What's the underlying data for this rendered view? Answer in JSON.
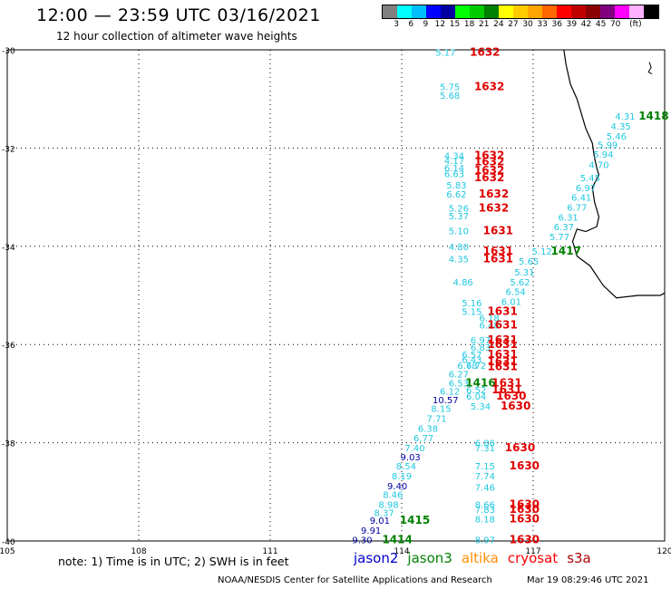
{
  "header": {
    "title": "12:00 — 23:59 UTC 03/16/2021",
    "subtitle": "12 hour collection of altimeter wave heights"
  },
  "colorbar": {
    "colors": [
      "#808080",
      "#00ffff",
      "#00bfff",
      "#0000ff",
      "#0000a0",
      "#00ff00",
      "#00cc00",
      "#008000",
      "#ffff00",
      "#ffcc00",
      "#ffa500",
      "#ff6600",
      "#ff0000",
      "#c00000",
      "#8b0000",
      "#800080",
      "#ff00ff",
      "#ffb0ff",
      "#000000"
    ],
    "ticks": [
      "3",
      "6",
      "9",
      "12",
      "15",
      "18",
      "21",
      "24",
      "27",
      "30",
      "33",
      "36",
      "39",
      "42",
      "45",
      "70",
      "(ft)"
    ]
  },
  "map": {
    "lat_ticks": [
      "-30",
      "-32",
      "-34",
      "-36",
      "-38",
      "-40"
    ],
    "lon_ticks": [
      "105",
      "108",
      "111",
      "114",
      "117",
      "120"
    ],
    "satellite_colors": {
      "jason2": "#0000cd",
      "jason3": "#008000",
      "altika": "#ff8c00",
      "cryosat": "#ff0000",
      "s3a": "#b00000"
    },
    "labels": [
      {
        "t": "5.17",
        "lon": 115.0,
        "lat": -30.05,
        "c": "c"
      },
      {
        "t": "1632",
        "lon": 115.9,
        "lat": -30.05,
        "c": "r"
      },
      {
        "t": "5.75",
        "lon": 115.1,
        "lat": -30.75,
        "c": "c"
      },
      {
        "t": "5.68",
        "lon": 115.1,
        "lat": -30.92,
        "c": "c"
      },
      {
        "t": "1632",
        "lon": 116.0,
        "lat": -30.75,
        "c": "r"
      },
      {
        "t": "4.31",
        "lon": 119.1,
        "lat": -31.35,
        "c": "c"
      },
      {
        "t": "1418",
        "lon": 119.75,
        "lat": -31.35,
        "c": "g"
      },
      {
        "t": "4.35",
        "lon": 119.0,
        "lat": -31.55,
        "c": "c"
      },
      {
        "t": "5.46",
        "lon": 118.9,
        "lat": -31.75,
        "c": "c"
      },
      {
        "t": "5.99",
        "lon": 118.7,
        "lat": -31.93,
        "c": "c"
      },
      {
        "t": "5.94",
        "lon": 118.6,
        "lat": -32.12,
        "c": "c"
      },
      {
        "t": "4.70",
        "lon": 118.5,
        "lat": -32.33,
        "c": "c"
      },
      {
        "t": "5.45",
        "lon": 118.3,
        "lat": -32.6,
        "c": "c"
      },
      {
        "t": "6.97",
        "lon": 118.2,
        "lat": -32.8,
        "c": "c"
      },
      {
        "t": "6.41",
        "lon": 118.1,
        "lat": -33.0,
        "c": "c"
      },
      {
        "t": "6.77",
        "lon": 118.0,
        "lat": -33.2,
        "c": "c"
      },
      {
        "t": "6.31",
        "lon": 117.8,
        "lat": -33.4,
        "c": "c"
      },
      {
        "t": "6.37",
        "lon": 117.7,
        "lat": -33.6,
        "c": "c"
      },
      {
        "t": "5.77",
        "lon": 117.6,
        "lat": -33.8,
        "c": "c"
      },
      {
        "t": "4.34",
        "lon": 115.2,
        "lat": -32.15,
        "c": "c"
      },
      {
        "t": "4.17",
        "lon": 115.2,
        "lat": -32.25,
        "c": "c"
      },
      {
        "t": "6.14",
        "lon": 115.2,
        "lat": -32.4,
        "c": "c"
      },
      {
        "t": "6.63",
        "lon": 115.2,
        "lat": -32.52,
        "c": "c"
      },
      {
        "t": "5.83",
        "lon": 115.25,
        "lat": -32.75,
        "c": "c"
      },
      {
        "t": "6.62",
        "lon": 115.25,
        "lat": -32.93,
        "c": "c"
      },
      {
        "t": "1632",
        "lon": 116.0,
        "lat": -32.15,
        "c": "r"
      },
      {
        "t": "1632",
        "lon": 116.0,
        "lat": -32.28,
        "c": "r"
      },
      {
        "t": "1632",
        "lon": 116.0,
        "lat": -32.45,
        "c": "r"
      },
      {
        "t": "1632",
        "lon": 116.0,
        "lat": -32.6,
        "c": "r"
      },
      {
        "t": "1632",
        "lon": 116.1,
        "lat": -32.93,
        "c": "r"
      },
      {
        "t": "5.26",
        "lon": 115.3,
        "lat": -33.22,
        "c": "c"
      },
      {
        "t": "5.37",
        "lon": 115.3,
        "lat": -33.38,
        "c": "c"
      },
      {
        "t": "1632",
        "lon": 116.1,
        "lat": -33.22,
        "c": "r"
      },
      {
        "t": "5.10",
        "lon": 115.3,
        "lat": -33.68,
        "c": "c"
      },
      {
        "t": "1631",
        "lon": 116.2,
        "lat": -33.68,
        "c": "r"
      },
      {
        "t": "4.80",
        "lon": 115.3,
        "lat": -34.0,
        "c": "c"
      },
      {
        "t": "4.35",
        "lon": 115.3,
        "lat": -34.25,
        "c": "c"
      },
      {
        "t": "1631",
        "lon": 116.2,
        "lat": -34.1,
        "c": "r"
      },
      {
        "t": "1631",
        "lon": 116.2,
        "lat": -34.25,
        "c": "r"
      },
      {
        "t": "5.12",
        "lon": 117.2,
        "lat": -34.1,
        "c": "c"
      },
      {
        "t": "1417",
        "lon": 117.75,
        "lat": -34.1,
        "c": "g"
      },
      {
        "t": "5.65",
        "lon": 116.9,
        "lat": -34.3,
        "c": "c"
      },
      {
        "t": "5.31",
        "lon": 116.8,
        "lat": -34.52,
        "c": "c"
      },
      {
        "t": "5.62",
        "lon": 116.7,
        "lat": -34.72,
        "c": "c"
      },
      {
        "t": "6.54",
        "lon": 116.6,
        "lat": -34.92,
        "c": "c"
      },
      {
        "t": "4.86",
        "lon": 115.4,
        "lat": -34.72,
        "c": "c"
      },
      {
        "t": "6.01",
        "lon": 116.5,
        "lat": -35.12,
        "c": "c"
      },
      {
        "t": "5.16",
        "lon": 115.6,
        "lat": -35.15,
        "c": "c"
      },
      {
        "t": "5.15",
        "lon": 115.6,
        "lat": -35.32,
        "c": "c"
      },
      {
        "t": "1631",
        "lon": 116.3,
        "lat": -35.32,
        "c": "r"
      },
      {
        "t": "6.18",
        "lon": 116.0,
        "lat": -35.45,
        "c": "c"
      },
      {
        "t": "6.48",
        "lon": 116.0,
        "lat": -35.6,
        "c": "c"
      },
      {
        "t": "1631",
        "lon": 116.3,
        "lat": -35.6,
        "c": "r"
      },
      {
        "t": "6.97",
        "lon": 115.8,
        "lat": -35.9,
        "c": "c"
      },
      {
        "t": "6.83",
        "lon": 115.8,
        "lat": -36.05,
        "c": "c"
      },
      {
        "t": "1631",
        "lon": 116.3,
        "lat": -35.9,
        "c": "r"
      },
      {
        "t": "1631",
        "lon": 116.3,
        "lat": -36.0,
        "c": "r"
      },
      {
        "t": "6.57",
        "lon": 115.6,
        "lat": -36.2,
        "c": "c"
      },
      {
        "t": "6.43",
        "lon": 115.6,
        "lat": -36.3,
        "c": "c"
      },
      {
        "t": "1631",
        "lon": 116.3,
        "lat": -36.2,
        "c": "r"
      },
      {
        "t": "1631",
        "lon": 116.3,
        "lat": -36.35,
        "c": "r"
      },
      {
        "t": "6.78",
        "lon": 115.5,
        "lat": -36.42,
        "c": "c"
      },
      {
        "t": "6.72",
        "lon": 115.7,
        "lat": -36.42,
        "c": "c"
      },
      {
        "t": "1631",
        "lon": 116.3,
        "lat": -36.45,
        "c": "r"
      },
      {
        "t": "6.27",
        "lon": 115.3,
        "lat": -36.6,
        "c": "c"
      },
      {
        "t": "6.53",
        "lon": 115.3,
        "lat": -36.78,
        "c": "c"
      },
      {
        "t": "1416",
        "lon": 115.8,
        "lat": -36.78,
        "c": "g"
      },
      {
        "t": "1631",
        "lon": 116.4,
        "lat": -36.78,
        "c": "r"
      },
      {
        "t": "6.52",
        "lon": 115.7,
        "lat": -36.92,
        "c": "c"
      },
      {
        "t": "1631",
        "lon": 116.4,
        "lat": -36.92,
        "c": "r"
      },
      {
        "t": "6.12",
        "lon": 115.1,
        "lat": -36.95,
        "c": "c"
      },
      {
        "t": "6.04",
        "lon": 115.7,
        "lat": -37.05,
        "c": "c"
      },
      {
        "t": "1630",
        "lon": 116.5,
        "lat": -37.05,
        "c": "r"
      },
      {
        "t": "10.57",
        "lon": 115.0,
        "lat": -37.12,
        "c": "b"
      },
      {
        "t": "8.15",
        "lon": 114.9,
        "lat": -37.3,
        "c": "c"
      },
      {
        "t": "5.34",
        "lon": 115.8,
        "lat": -37.25,
        "c": "c"
      },
      {
        "t": "1630",
        "lon": 116.6,
        "lat": -37.25,
        "c": "r"
      },
      {
        "t": "7.71",
        "lon": 114.8,
        "lat": -37.5,
        "c": "c"
      },
      {
        "t": "6.38",
        "lon": 114.6,
        "lat": -37.7,
        "c": "c"
      },
      {
        "t": "6.77",
        "lon": 114.5,
        "lat": -37.9,
        "c": "c"
      },
      {
        "t": "7.40",
        "lon": 114.3,
        "lat": -38.1,
        "c": "c"
      },
      {
        "t": "6.86",
        "lon": 115.9,
        "lat": -38.0,
        "c": "c"
      },
      {
        "t": "7.31",
        "lon": 115.9,
        "lat": -38.1,
        "c": "c"
      },
      {
        "t": "1630",
        "lon": 116.7,
        "lat": -38.1,
        "c": "r"
      },
      {
        "t": "9.03",
        "lon": 114.2,
        "lat": -38.28,
        "c": "b"
      },
      {
        "t": "8.54",
        "lon": 114.1,
        "lat": -38.47,
        "c": "c"
      },
      {
        "t": "7.15",
        "lon": 115.9,
        "lat": -38.47,
        "c": "c"
      },
      {
        "t": "1630",
        "lon": 116.8,
        "lat": -38.47,
        "c": "r"
      },
      {
        "t": "8.19",
        "lon": 114.0,
        "lat": -38.67,
        "c": "c"
      },
      {
        "t": "7.74",
        "lon": 115.9,
        "lat": -38.67,
        "c": "c"
      },
      {
        "t": "9.40",
        "lon": 113.9,
        "lat": -38.87,
        "c": "b"
      },
      {
        "t": "7.46",
        "lon": 115.9,
        "lat": -38.9,
        "c": "c"
      },
      {
        "t": "8.46",
        "lon": 113.8,
        "lat": -39.05,
        "c": "c"
      },
      {
        "t": "8.98",
        "lon": 113.7,
        "lat": -39.25,
        "c": "c"
      },
      {
        "t": "8.66",
        "lon": 115.9,
        "lat": -39.25,
        "c": "c"
      },
      {
        "t": "1630",
        "lon": 116.8,
        "lat": -39.25,
        "c": "r"
      },
      {
        "t": "8.37",
        "lon": 113.6,
        "lat": -39.42,
        "c": "c"
      },
      {
        "t": "7.83",
        "lon": 115.9,
        "lat": -39.35,
        "c": "c"
      },
      {
        "t": "1630",
        "lon": 116.8,
        "lat": -39.35,
        "c": "r"
      },
      {
        "t": "9.01",
        "lon": 113.5,
        "lat": -39.58,
        "c": "b"
      },
      {
        "t": "1415",
        "lon": 114.3,
        "lat": -39.58,
        "c": "g"
      },
      {
        "t": "8.18",
        "lon": 115.9,
        "lat": -39.55,
        "c": "c"
      },
      {
        "t": "1630",
        "lon": 116.8,
        "lat": -39.55,
        "c": "r"
      },
      {
        "t": "9.91",
        "lon": 113.3,
        "lat": -39.78,
        "c": "b"
      },
      {
        "t": "9.30",
        "lon": 113.1,
        "lat": -39.97,
        "c": "b"
      },
      {
        "t": "1414",
        "lon": 113.9,
        "lat": -39.97,
        "c": "g"
      },
      {
        "t": "8.97",
        "lon": 115.9,
        "lat": -39.97,
        "c": "c"
      },
      {
        "t": "1630",
        "lon": 116.8,
        "lat": -39.97,
        "c": "r"
      }
    ]
  },
  "footer": {
    "note": "note: 1) Time is in UTC; 2) SWH is in feet",
    "legend": [
      {
        "name": "jason2",
        "color": "#0000cd"
      },
      {
        "name": "jason3",
        "color": "#008000"
      },
      {
        "name": "altika",
        "color": "#ff8c00"
      },
      {
        "name": "cryosat",
        "color": "#ff0000"
      },
      {
        "name": "s3a",
        "color": "#b00000"
      }
    ],
    "credit_left": "NOAA/NESDIS Center for Satellite Applications and Research",
    "credit_right": "Mar 19 08:29:46 UTC 2021"
  }
}
